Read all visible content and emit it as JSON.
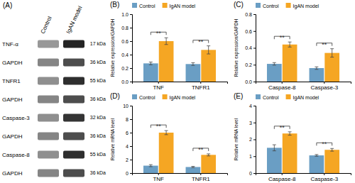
{
  "chart_data": [
    {
      "type": "blot",
      "title": "(A)",
      "columns": [
        "Control",
        "IgAN model"
      ],
      "rows": [
        "TNF-α",
        "GAPDH",
        "TNFR1",
        "GAPDH",
        "Caspase-3",
        "GAPDH",
        "Caspase-8",
        "GAPDH"
      ],
      "right_labels": [
        "17 kDa",
        "36 kDa",
        "55 kDa",
        "36 kDa",
        "32 kDa",
        "36 kDa",
        "55 kDa",
        "36 kDa"
      ],
      "cells": [
        [
          0.55,
          0.92
        ],
        [
          0.65,
          0.75
        ],
        [
          0.6,
          0.88
        ],
        [
          0.65,
          0.75
        ],
        [
          0.6,
          0.85
        ],
        [
          0.65,
          0.75
        ],
        [
          0.6,
          0.88
        ],
        [
          0.65,
          0.75
        ]
      ]
    },
    {
      "type": "bar",
      "title": "(B)",
      "categories": [
        "TNF",
        "TNFR1"
      ],
      "series": [
        {
          "name": "Control",
          "color": "#6A9EC4",
          "values": [
            0.27,
            0.26
          ],
          "errors": [
            0.02,
            0.02
          ]
        },
        {
          "name": "IgAN model",
          "color": "#F5A623",
          "values": [
            0.6,
            0.47
          ],
          "errors": [
            0.05,
            0.06
          ]
        }
      ],
      "ylabel": "Relative expression/GAPDH",
      "ylim": [
        0,
        1.0
      ],
      "yticks": [
        {
          "value": 0.0,
          "label": "0.0"
        },
        0.2,
        0.4,
        0.6,
        0.8,
        {
          "value": 1.0,
          "label": "1.0"
        }
      ],
      "annotations": [
        "**",
        "**"
      ],
      "legend": "top"
    },
    {
      "type": "bar",
      "title": "(C)",
      "categories": [
        "Caspase-8",
        "Caspase-3"
      ],
      "series": [
        {
          "name": "Control",
          "color": "#6A9EC4",
          "values": [
            0.21,
            0.16
          ],
          "errors": [
            0.015,
            0.015
          ]
        },
        {
          "name": "IgAN model",
          "color": "#F5A623",
          "values": [
            0.44,
            0.34
          ],
          "errors": [
            0.03,
            0.05
          ]
        }
      ],
      "ylabel": "Relative expression/GAPDH",
      "ylim": [
        0,
        0.8
      ],
      "yticks": [
        {
          "value": 0.0,
          "label": "0.0"
        },
        0.2,
        0.4,
        0.6,
        0.8
      ],
      "annotations": [
        "**",
        "**"
      ],
      "legend": "top"
    },
    {
      "type": "bar",
      "title": "(D)",
      "categories": [
        "TNF",
        "TNFR1"
      ],
      "series": [
        {
          "name": "Control",
          "color": "#6A9EC4",
          "values": [
            1.1,
            0.9
          ],
          "errors": [
            0.15,
            0.1
          ]
        },
        {
          "name": "IgAN model",
          "color": "#F5A623",
          "values": [
            6.0,
            2.7
          ],
          "errors": [
            0.3,
            0.15
          ]
        }
      ],
      "ylabel": "Relative mRNA level",
      "ylim": [
        0,
        10
      ],
      "yticks": [
        0,
        2,
        4,
        6,
        8,
        10
      ],
      "annotations": [
        "**",
        "**"
      ],
      "legend": "top"
    },
    {
      "type": "bar",
      "title": "(E)",
      "categories": [
        "Caspase-8",
        "Caspase-3"
      ],
      "series": [
        {
          "name": "Control",
          "color": "#6A9EC4",
          "values": [
            1.5,
            1.05
          ],
          "errors": [
            0.18,
            0.05
          ]
        },
        {
          "name": "IgAN model",
          "color": "#F5A623",
          "values": [
            2.35,
            1.38
          ],
          "errors": [
            0.1,
            0.08
          ]
        }
      ],
      "ylabel": "Relative mRNA level",
      "ylim": [
        0,
        4
      ],
      "yticks": [
        0,
        1,
        2,
        3,
        4
      ],
      "annotations": [
        "**",
        "**"
      ],
      "legend": "top"
    }
  ]
}
